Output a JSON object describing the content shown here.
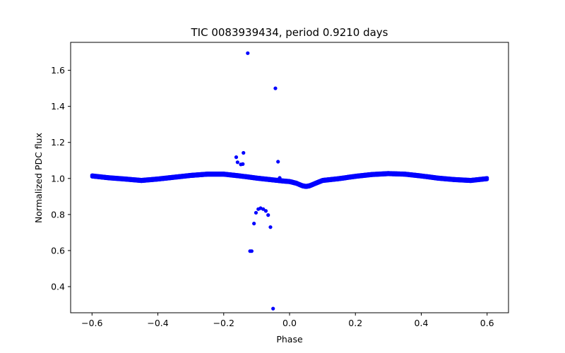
{
  "chart_data": {
    "type": "scatter",
    "title": "TIC 0083939434, period 0.9210 days",
    "xlabel": "Phase",
    "ylabel": "Normalized PDC flux",
    "xlim": [
      -0.665,
      0.665
    ],
    "ylim": [
      0.255,
      1.755
    ],
    "xticks": [
      -0.6,
      -0.4,
      -0.2,
      0.0,
      0.2,
      0.4,
      0.6
    ],
    "xtick_labels": [
      "−0.6",
      "−0.4",
      "−0.2",
      "0.0",
      "0.2",
      "0.4",
      "0.6"
    ],
    "yticks": [
      0.4,
      0.6,
      0.8,
      1.0,
      1.2,
      1.4,
      1.6
    ],
    "ytick_labels": [
      "0.4",
      "0.6",
      "0.8",
      "1.0",
      "1.2",
      "1.4",
      "1.6"
    ],
    "marker_color": "#0000ff",
    "grid": false,
    "series": [
      {
        "name": "light curve",
        "curve_knots": {
          "x": [
            -0.6,
            -0.55,
            -0.5,
            -0.45,
            -0.4,
            -0.35,
            -0.3,
            -0.25,
            -0.2,
            -0.15,
            -0.1,
            -0.05,
            -0.02,
            0.0,
            0.02,
            0.04,
            0.05,
            0.06,
            0.08,
            0.1,
            0.15,
            0.2,
            0.25,
            0.3,
            0.35,
            0.4,
            0.45,
            0.5,
            0.55,
            0.6
          ],
          "y": [
            1.01,
            1.0,
            0.993,
            0.985,
            0.993,
            1.003,
            1.013,
            1.02,
            1.02,
            1.01,
            0.998,
            0.988,
            0.982,
            0.979,
            0.97,
            0.955,
            0.952,
            0.955,
            0.97,
            0.985,
            0.995,
            1.008,
            1.018,
            1.023,
            1.02,
            1.01,
            0.998,
            0.99,
            0.985,
            0.995
          ]
        },
        "curve_sample_step": 0.002
      },
      {
        "name": "outliers",
        "x": [
          -0.127,
          -0.043,
          -0.14,
          -0.162,
          -0.158,
          -0.148,
          -0.142,
          -0.035,
          -0.03,
          -0.072,
          -0.08,
          -0.088,
          -0.095,
          -0.102,
          -0.108,
          -0.115,
          -0.065,
          -0.058,
          -0.12,
          -0.05
        ],
        "y": [
          1.695,
          1.5,
          1.142,
          1.118,
          1.09,
          1.078,
          1.08,
          1.093,
          1.003,
          0.82,
          0.83,
          0.835,
          0.83,
          0.81,
          0.75,
          0.597,
          0.797,
          0.73,
          0.597,
          0.278
        ]
      }
    ]
  }
}
